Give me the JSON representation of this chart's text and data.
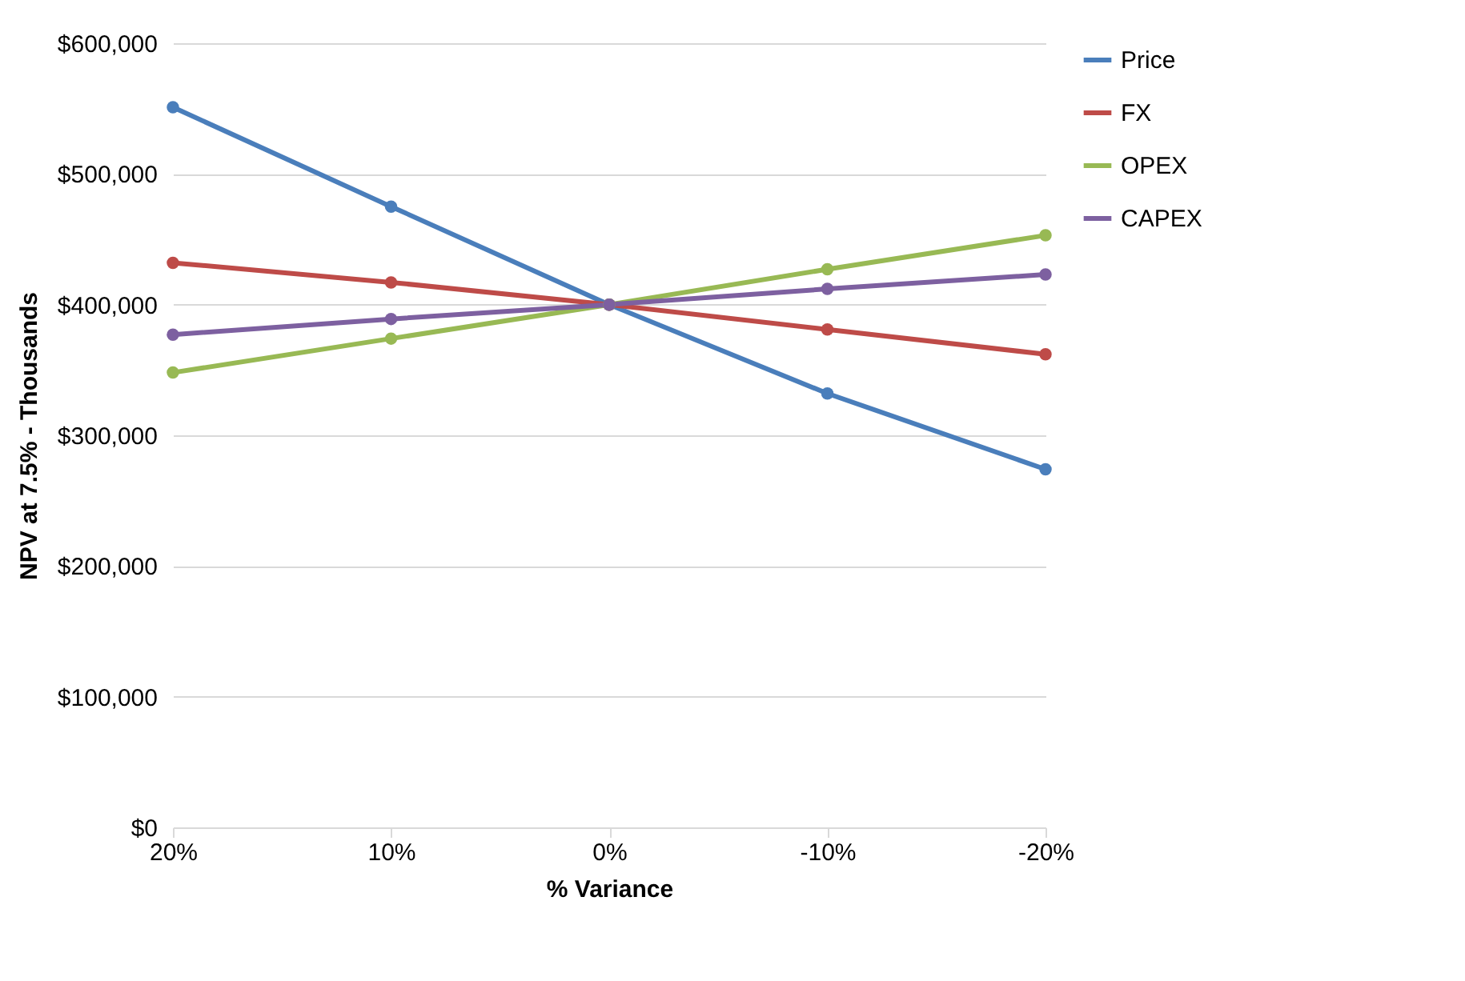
{
  "chart_data": {
    "type": "line",
    "xlabel": "% Variance",
    "ylabel": "NPV at 7.5% - Thousands",
    "categories": [
      "20%",
      "10%",
      "0%",
      "-10%",
      "-20%"
    ],
    "series": [
      {
        "name": "Price",
        "color": "#4a7ebb",
        "values": [
          551000,
          475000,
          400000,
          332000,
          274000
        ]
      },
      {
        "name": "FX",
        "color": "#be4b48",
        "values": [
          432000,
          417000,
          400000,
          381000,
          362000
        ]
      },
      {
        "name": "OPEX",
        "color": "#98b954",
        "values": [
          348000,
          374000,
          400000,
          427000,
          453000
        ]
      },
      {
        "name": "CAPEX",
        "color": "#7d60a0",
        "values": [
          377000,
          389000,
          400000,
          412000,
          423000
        ]
      }
    ],
    "ylim": [
      0,
      600000
    ],
    "yticks": [
      {
        "value": 0,
        "label": "$0"
      },
      {
        "value": 100000,
        "label": "$100,000"
      },
      {
        "value": 200000,
        "label": "$200,000"
      },
      {
        "value": 300000,
        "label": "$300,000"
      },
      {
        "value": 400000,
        "label": "$400,000"
      },
      {
        "value": 500000,
        "label": "$500,000"
      },
      {
        "value": 600000,
        "label": "$600,000"
      }
    ],
    "grid": "y",
    "legend": "right",
    "marker": "circle",
    "line_style": "solid"
  }
}
